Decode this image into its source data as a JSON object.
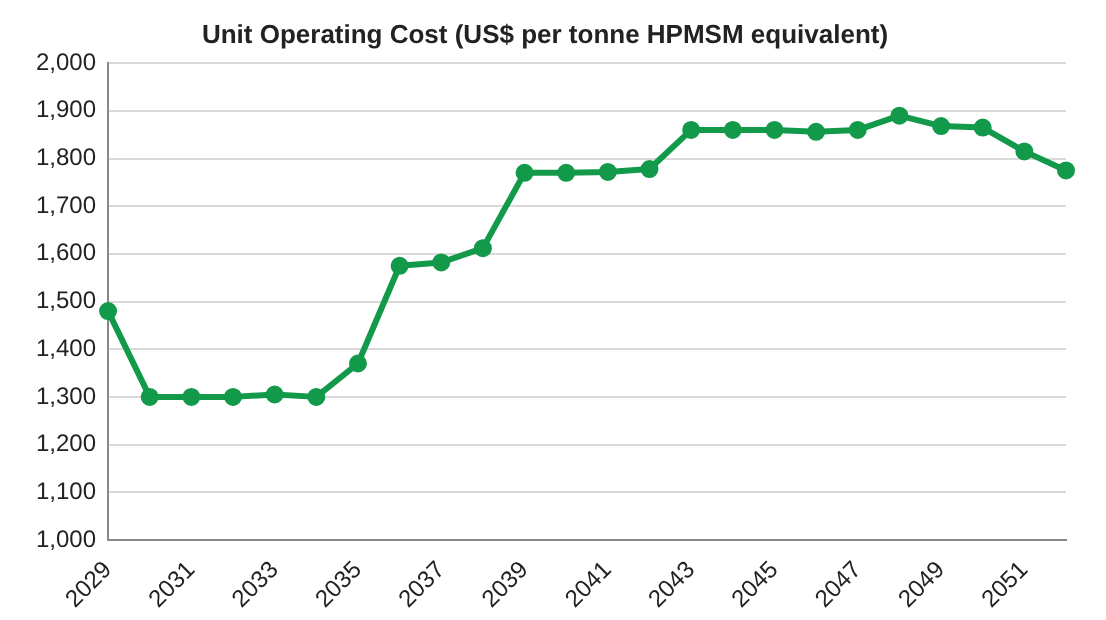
{
  "chart_data": {
    "type": "line",
    "title": "Unit Operating Cost (US$ per tonne HPMSM equivalent)",
    "categories": [
      "2029",
      null,
      "2031",
      null,
      "2033",
      null,
      "2035",
      null,
      "2037",
      null,
      "2039",
      null,
      "2041",
      null,
      "2043",
      null,
      "2045",
      null,
      "2047",
      null,
      "2049",
      null,
      "2051",
      null
    ],
    "series": [
      {
        "color": "#12994a",
        "values": [
          1480,
          1300,
          1300,
          1300,
          1305,
          1300,
          1370,
          1575,
          1582,
          1612,
          1770,
          1770,
          1772,
          1778,
          1860,
          1860,
          1860,
          1856,
          1860,
          1890,
          1868,
          1865,
          1815,
          1775
        ]
      }
    ],
    "ylim": [
      1000,
      2000
    ],
    "yticks": [
      {
        "value": 1000,
        "label": "1,000"
      },
      {
        "value": 1100,
        "label": "1,100"
      },
      {
        "value": 1200,
        "label": "1,200"
      },
      {
        "value": 1300,
        "label": "1,300"
      },
      {
        "value": 1400,
        "label": "1,400"
      },
      {
        "value": 1500,
        "label": "1,500"
      },
      {
        "value": 1600,
        "label": "1,600"
      },
      {
        "value": 1700,
        "label": "1,700"
      },
      {
        "value": 1800,
        "label": "1,800"
      },
      {
        "value": 1900,
        "label": "1,900"
      },
      {
        "value": 2000,
        "label": "2,000"
      }
    ],
    "grid": "y",
    "legend": false,
    "marker": "circle",
    "line_style": "solid"
  }
}
